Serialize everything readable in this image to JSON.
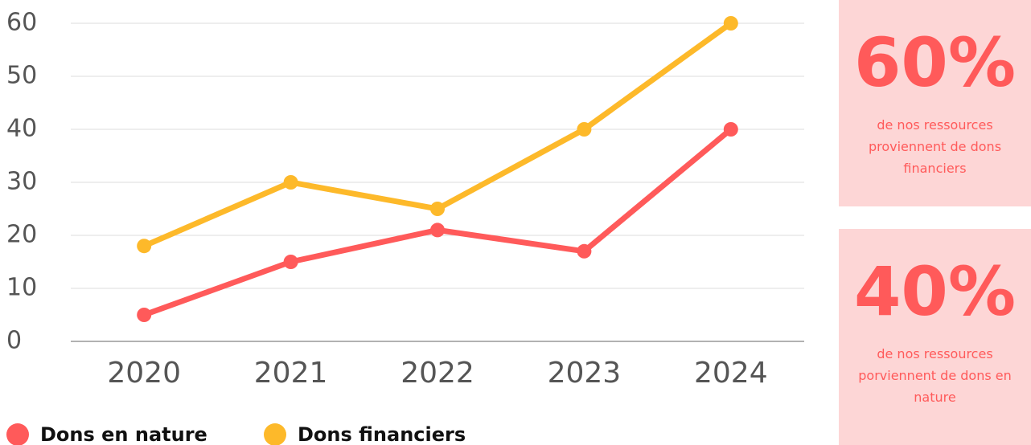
{
  "chart_data": {
    "type": "line",
    "categories": [
      "2020",
      "2021",
      "2022",
      "2023",
      "2024"
    ],
    "series": [
      {
        "name": "Dons en nature",
        "color": "#ff5a5a",
        "values": [
          5,
          15,
          21,
          17,
          40
        ]
      },
      {
        "name": "Dons financiers",
        "color": "#fdb92a",
        "values": [
          18,
          30,
          25,
          40,
          60
        ]
      }
    ],
    "ylim": [
      0,
      60
    ],
    "yticks": [
      0,
      10,
      20,
      30,
      40,
      50,
      60
    ],
    "grid": true,
    "legend": "bottom"
  },
  "cards": [
    {
      "value": "60%",
      "text": "de nos ressources proviennent de dons financiers"
    },
    {
      "value": "40%",
      "text": "de nos ressources porviennent de dons en nature"
    }
  ]
}
